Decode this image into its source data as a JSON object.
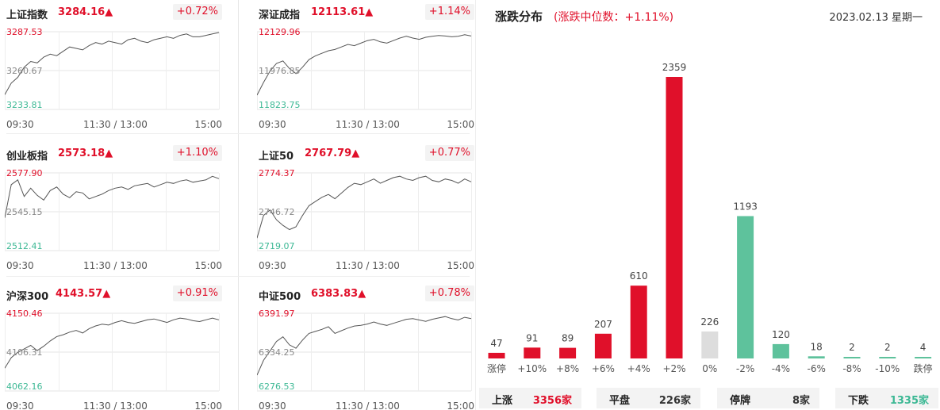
{
  "indices": [
    {
      "name": "上证指数",
      "price": "3284.16▲",
      "change": "+0.72%",
      "ymax_label": "3287.53",
      "ymid_label": "3260.67",
      "ymin_label": "3233.81"
    },
    {
      "name": "深证成指",
      "price": "12113.61▲",
      "change": "+1.14%",
      "ymax_label": "12129.96",
      "ymid_label": "11976.85",
      "ymin_label": "11823.75"
    },
    {
      "name": "创业板指",
      "price": "2573.18▲",
      "change": "+1.10%",
      "ymax_label": "2577.90",
      "ymid_label": "2545.15",
      "ymin_label": "2512.41"
    },
    {
      "name": "上证50",
      "price": "2767.79▲",
      "change": "+0.77%",
      "ymax_label": "2774.37",
      "ymid_label": "2746.72",
      "ymin_label": "2719.07"
    },
    {
      "name": "沪深300",
      "price": "4143.57▲",
      "change": "+0.91%",
      "ymax_label": "4150.46",
      "ymid_label": "4106.31",
      "ymin_label": "4062.16"
    },
    {
      "name": "中证500",
      "price": "6383.83▲",
      "change": "+0.78%",
      "ymax_label": "6391.97",
      "ymid_label": "6334.25",
      "ymin_label": "6276.53"
    }
  ],
  "time_axis": {
    "start": "09:30",
    "mid": "11:30 / 13:00",
    "end": "15:00"
  },
  "distribution": {
    "title": "涨跌分布",
    "median_text": "(涨跌中位数：+1.11%)",
    "date": "2023.02.13 星期一"
  },
  "summary": [
    {
      "label": "上涨",
      "value": "3356家",
      "color": "#e0102a"
    },
    {
      "label": "平盘",
      "value": "226家",
      "color": "#333333"
    },
    {
      "label": "停牌",
      "value": "8家",
      "color": "#333333"
    },
    {
      "label": "下跌",
      "value": "1335家",
      "color": "#3cb894"
    }
  ],
  "chart_data": [
    {
      "type": "bar",
      "categories": [
        "涨停",
        "+10%",
        "+8%",
        "+6%",
        "+4%",
        "+2%",
        "0%",
        "-2%",
        "-4%",
        "-6%",
        "-8%",
        "-10%",
        "跌停"
      ],
      "values": [
        47,
        91,
        89,
        207,
        610,
        2359,
        226,
        1193,
        120,
        18,
        2,
        2,
        4
      ],
      "colors": [
        "#e0102a",
        "#e0102a",
        "#e0102a",
        "#e0102a",
        "#e0102a",
        "#e0102a",
        "#dddddd",
        "#5ec29c",
        "#5ec29c",
        "#5ec29c",
        "#5ec29c",
        "#5ec29c",
        "#5ec29c"
      ],
      "ylim": [
        0,
        2359
      ]
    },
    {
      "type": "line",
      "name": "上证指数",
      "ylim": [
        3233.81,
        3287.53
      ],
      "values": [
        3244,
        3252,
        3256,
        3263,
        3267,
        3266,
        3270,
        3272,
        3271,
        3274,
        3277,
        3276,
        3275,
        3278,
        3280,
        3279,
        3281,
        3280,
        3279,
        3282,
        3283,
        3281,
        3280,
        3282,
        3283,
        3284,
        3283,
        3285,
        3286,
        3284,
        3284,
        3285,
        3286,
        3287
      ]
    },
    {
      "type": "line",
      "name": "深证成指",
      "ylim": [
        11823.75,
        12129.96
      ],
      "values": [
        11880,
        11930,
        11975,
        12005,
        12015,
        11985,
        11965,
        11990,
        12020,
        12035,
        12045,
        12055,
        12060,
        12070,
        12080,
        12075,
        12085,
        12095,
        12100,
        12090,
        12085,
        12095,
        12105,
        12112,
        12105,
        12100,
        12108,
        12112,
        12115,
        12113,
        12110,
        12112,
        12118,
        12113
      ]
    },
    {
      "type": "line",
      "name": "创业板指",
      "ylim": [
        2512.41,
        2577.9
      ],
      "values": [
        2540,
        2568,
        2572,
        2558,
        2565,
        2559,
        2555,
        2563,
        2566,
        2560,
        2557,
        2562,
        2561,
        2556,
        2558,
        2560,
        2563,
        2565,
        2566,
        2564,
        2567,
        2568,
        2569,
        2566,
        2568,
        2570,
        2569,
        2571,
        2572,
        2570,
        2571,
        2572,
        2575,
        2573
      ]
    },
    {
      "type": "line",
      "name": "上证50",
      "ylim": [
        2719.07,
        2774.37
      ],
      "values": [
        2728,
        2744,
        2748,
        2741,
        2737,
        2734,
        2736,
        2744,
        2751,
        2754,
        2757,
        2759,
        2756,
        2760,
        2764,
        2767,
        2766,
        2768,
        2770,
        2767,
        2769,
        2771,
        2772,
        2770,
        2769,
        2771,
        2772,
        2769,
        2768,
        2770,
        2769,
        2767,
        2770,
        2768
      ]
    },
    {
      "type": "line",
      "name": "沪深300",
      "ylim": [
        4062.16,
        4150.46
      ],
      "values": [
        4088,
        4100,
        4106,
        4110,
        4114,
        4108,
        4113,
        4119,
        4124,
        4126,
        4129,
        4131,
        4128,
        4133,
        4136,
        4138,
        4137,
        4140,
        4142,
        4140,
        4139,
        4141,
        4143,
        4144,
        4142,
        4140,
        4143,
        4145,
        4144,
        4142,
        4141,
        4143,
        4145,
        4143
      ]
    },
    {
      "type": "line",
      "name": "中证500",
      "ylim": [
        6276.53,
        6391.97
      ],
      "values": [
        6300,
        6322,
        6336,
        6350,
        6357,
        6345,
        6340,
        6352,
        6362,
        6365,
        6368,
        6372,
        6362,
        6366,
        6370,
        6373,
        6374,
        6376,
        6379,
        6376,
        6374,
        6377,
        6380,
        6383,
        6384,
        6382,
        6380,
        6383,
        6385,
        6387,
        6384,
        6382,
        6386,
        6384
      ]
    }
  ]
}
